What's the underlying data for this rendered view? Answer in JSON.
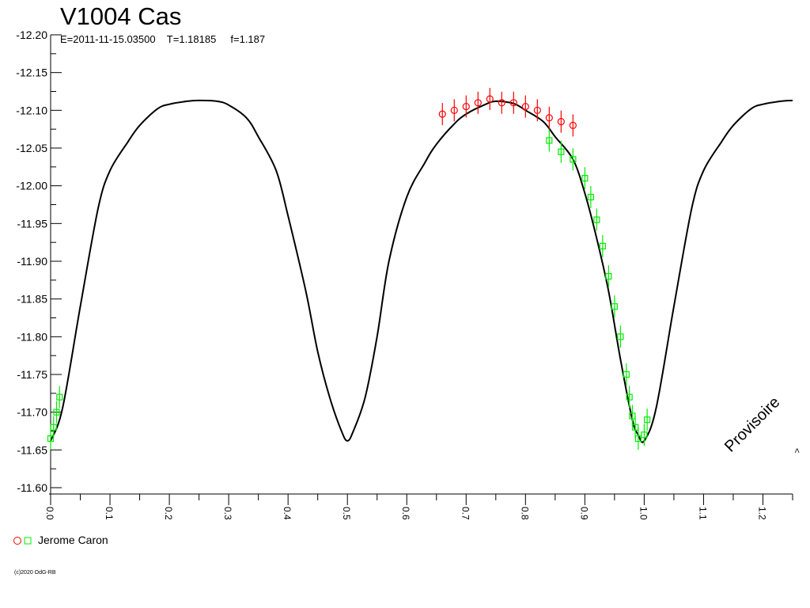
{
  "chart_data": {
    "type": "scatter",
    "title": "V1004 Cas",
    "subtitle": "E=2011-11-15.03500    T=1.18185     f=1.187",
    "xlabel": "",
    "ylabel": "",
    "xlim": [
      0.0,
      1.25
    ],
    "ylim": [
      -11.6,
      -12.2
    ],
    "y_inverted": true,
    "x_ticks": [
      "0.0",
      "0.1",
      "0.2",
      "0.3",
      "0.4",
      "0.5",
      "0.6",
      "0.7",
      "0.8",
      "0.9",
      "1.0",
      "1.1",
      "1.2"
    ],
    "y_ticks": [
      "-12.20",
      "-12.15",
      "-12.10",
      "-12.05",
      "-12.00",
      "-11.95",
      "-11.90",
      "-11.85",
      "-11.80",
      "-11.75",
      "-11.70",
      "-11.65",
      "-11.60"
    ],
    "grid": false,
    "legend_position": "bottom-left",
    "model_curve": {
      "x": [
        0.0,
        0.02,
        0.05,
        0.08,
        0.1,
        0.13,
        0.15,
        0.18,
        0.2,
        0.23,
        0.25,
        0.28,
        0.3,
        0.33,
        0.35,
        0.38,
        0.4,
        0.43,
        0.45,
        0.47,
        0.49,
        0.5,
        0.51,
        0.53,
        0.55,
        0.57,
        0.6,
        0.63,
        0.65,
        0.68,
        0.7,
        0.73,
        0.75,
        0.78,
        0.8,
        0.83,
        0.85,
        0.88,
        0.9,
        0.92,
        0.94,
        0.96,
        0.98,
        0.99,
        1.0,
        1.02,
        1.05,
        1.08,
        1.1,
        1.13,
        1.15,
        1.18,
        1.2,
        1.23,
        1.25
      ],
      "y": [
        -11.662,
        -11.705,
        -11.84,
        -11.97,
        -12.02,
        -12.058,
        -12.08,
        -12.102,
        -12.108,
        -12.112,
        -12.113,
        -12.112,
        -12.107,
        -12.09,
        -12.065,
        -12.02,
        -11.96,
        -11.86,
        -11.78,
        -11.72,
        -11.675,
        -11.662,
        -11.675,
        -11.72,
        -11.8,
        -11.9,
        -11.985,
        -12.03,
        -12.055,
        -12.082,
        -12.095,
        -12.107,
        -12.112,
        -12.109,
        -12.1,
        -12.085,
        -12.065,
        -12.035,
        -11.99,
        -11.93,
        -11.86,
        -11.77,
        -11.69,
        -11.67,
        -11.662,
        -11.705,
        -11.84,
        -11.97,
        -12.02,
        -12.058,
        -12.08,
        -12.102,
        -12.108,
        -12.112,
        -12.113
      ]
    },
    "series": [
      {
        "name": "Jerome Caron",
        "marker": "circle",
        "color": "#ff0000",
        "x": [
          0.66,
          0.68,
          0.7,
          0.72,
          0.74,
          0.76,
          0.78,
          0.8,
          0.82,
          0.84,
          0.86,
          0.88
        ],
        "y": [
          -12.095,
          -12.1,
          -12.105,
          -12.11,
          -12.115,
          -12.11,
          -12.11,
          -12.105,
          -12.1,
          -12.09,
          -12.085,
          -12.08
        ]
      },
      {
        "name": "",
        "marker": "square",
        "color": "#00ee00",
        "x": [
          0.0,
          0.005,
          0.01,
          0.015,
          0.84,
          0.86,
          0.88,
          0.9,
          0.91,
          0.92,
          0.93,
          0.94,
          0.95,
          0.96,
          0.97,
          0.975,
          0.98,
          0.985,
          0.99,
          1.0,
          1.005
        ],
        "y": [
          -11.665,
          -11.68,
          -11.7,
          -11.72,
          -12.06,
          -12.045,
          -12.035,
          -12.01,
          -11.985,
          -11.955,
          -11.92,
          -11.88,
          -11.84,
          -11.8,
          -11.75,
          -11.72,
          -11.695,
          -11.68,
          -11.665,
          -11.67,
          -11.69
        ]
      }
    ],
    "annotations": [
      "Provisoire",
      "<"
    ]
  },
  "legend_label": "Jerome Caron",
  "copyright": "(c)2020 OdG-RB",
  "colors": {
    "red": "#ff0000",
    "green": "#00ee00",
    "curve": "#000000",
    "axis": "#000000"
  }
}
